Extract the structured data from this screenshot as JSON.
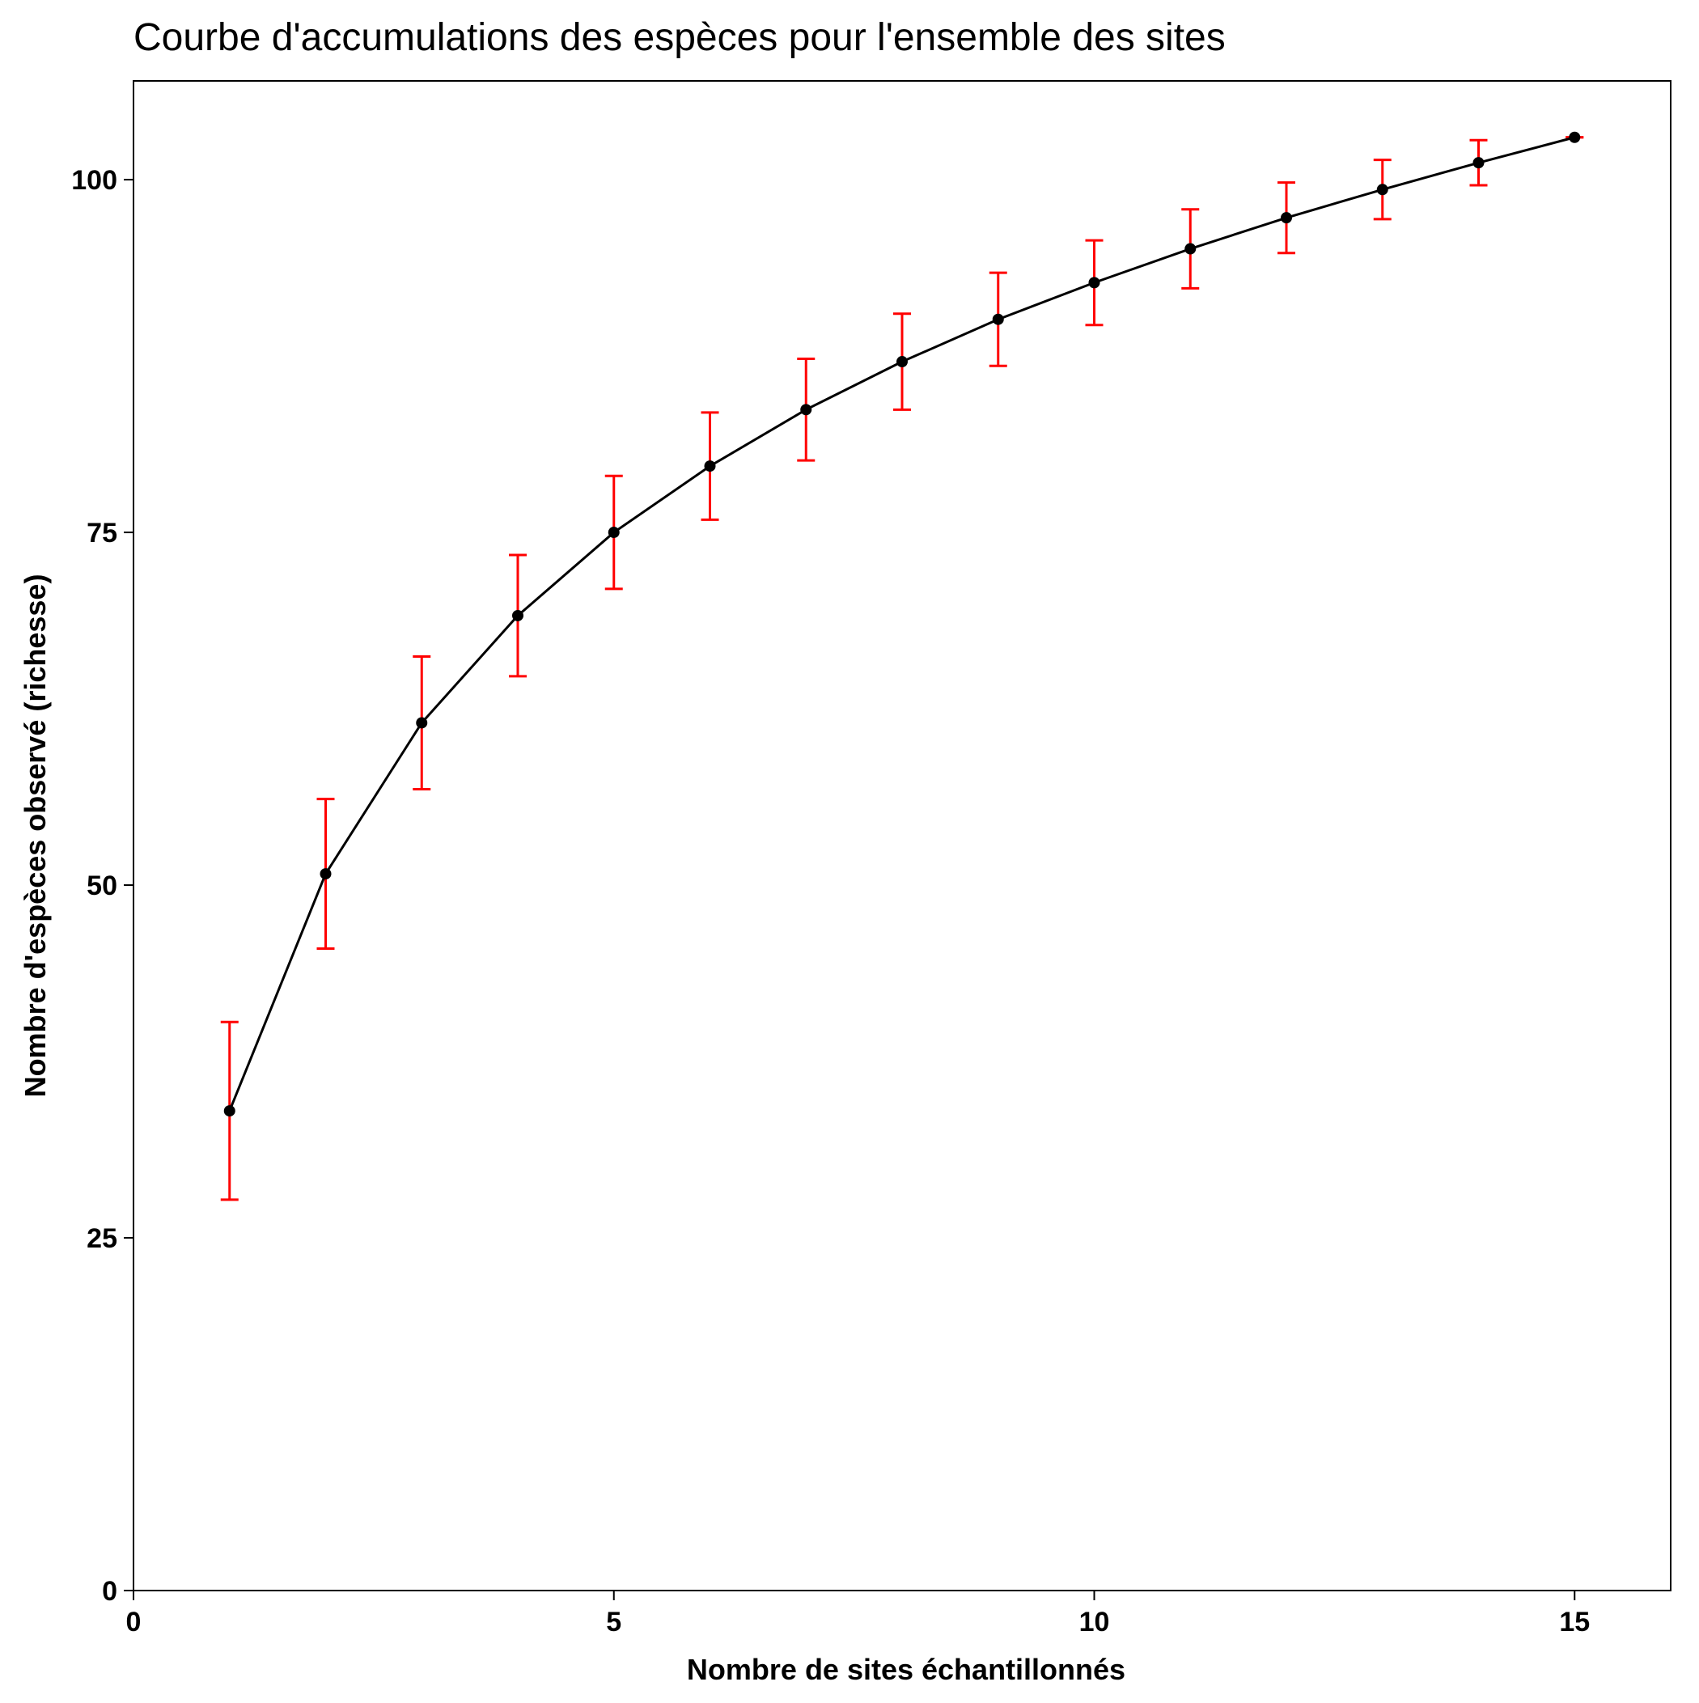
{
  "chart_data": {
    "type": "line",
    "title": "Courbe d'accumulations des espèces pour l'ensemble des sites",
    "xlabel": "Nombre de sites échantillonnés",
    "ylabel": "Nombre d'espèces observé (richesse)",
    "xlim": [
      0,
      16
    ],
    "ylim": [
      0,
      107
    ],
    "xticks": [
      0,
      5,
      10,
      15
    ],
    "yticks": [
      0,
      25,
      50,
      75,
      100
    ],
    "grid": false,
    "legend": "none",
    "series": [
      {
        "x": [
          1,
          2,
          3,
          4,
          5,
          6,
          7,
          8,
          9,
          10,
          11,
          12,
          13,
          14,
          15
        ],
        "y": [
          34.0,
          50.8,
          61.5,
          69.1,
          75.0,
          79.7,
          83.7,
          87.1,
          90.1,
          92.7,
          95.1,
          97.3,
          99.3,
          101.2,
          103.0
        ],
        "error_low": [
          27.7,
          45.5,
          56.8,
          64.8,
          71.0,
          75.9,
          80.1,
          83.7,
          86.8,
          89.7,
          92.3,
          94.8,
          97.2,
          99.6,
          103.0
        ],
        "error_high": [
          40.3,
          56.1,
          66.2,
          73.4,
          79.0,
          83.5,
          87.3,
          90.5,
          93.4,
          95.7,
          97.9,
          99.8,
          101.4,
          102.8,
          103.0
        ]
      }
    ],
    "colors": {
      "line": "#000000",
      "points": "#000000",
      "error_bars": "#ff0000",
      "frame": "#000000"
    }
  }
}
